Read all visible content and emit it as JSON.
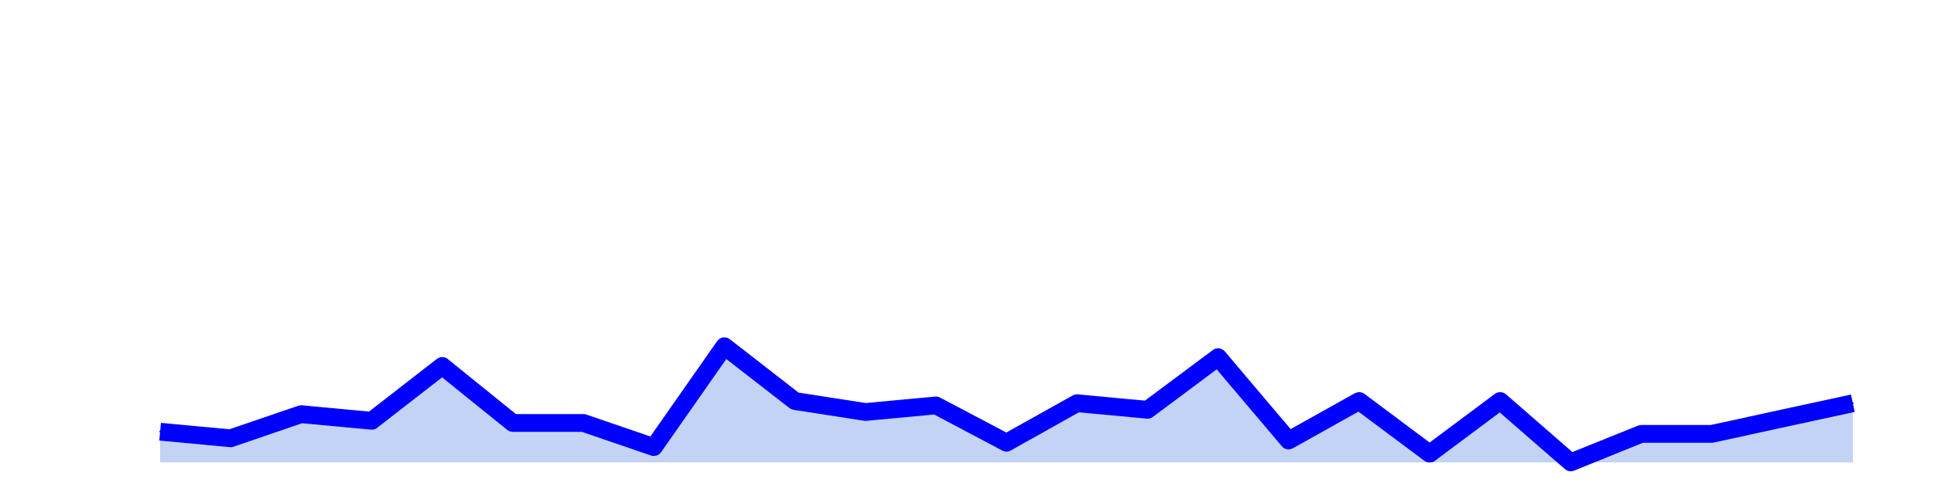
{
  "chart_data": {
    "type": "area",
    "title": "",
    "xlabel": "",
    "ylabel": "",
    "grid": false,
    "legend": "none",
    "x": [
      1,
      2,
      3,
      4,
      5,
      6,
      7,
      8,
      9,
      10,
      11,
      12,
      13,
      14,
      15,
      16,
      17,
      18,
      19,
      20,
      21,
      22,
      23,
      24,
      25
    ],
    "xlim": [
      1,
      25
    ],
    "ylim": [
      0,
      100
    ],
    "series": [
      {
        "values": [
          7.0,
          5.5,
          11.0,
          9.5,
          22.0,
          9.0,
          9.0,
          3.5,
          26.5,
          14.0,
          11.5,
          13.0,
          4.5,
          13.5,
          12.0,
          24.0,
          5.0,
          14.0,
          2.0,
          14.0,
          0.0,
          6.5,
          6.5,
          10.0,
          13.5
        ],
        "line_color": "#0000ff",
        "fill_color": "#c3d3f5"
      }
    ]
  }
}
